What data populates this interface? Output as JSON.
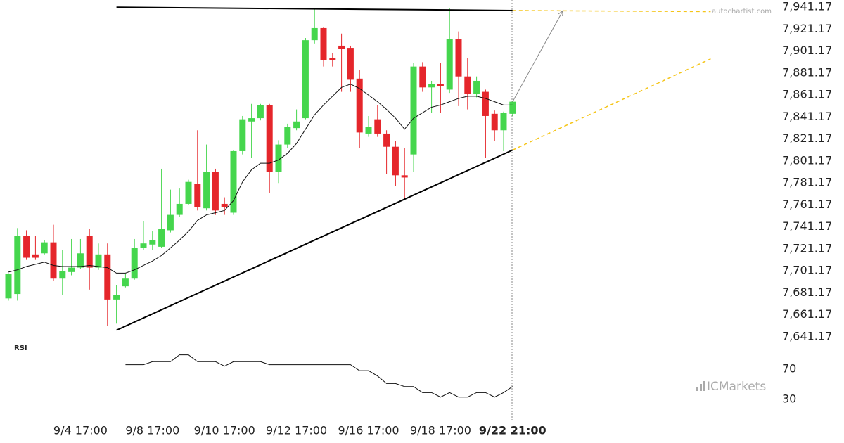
{
  "chart_data": {
    "type": "candlestick",
    "categories": [
      null,
      null,
      null,
      null,
      null,
      null,
      null,
      null,
      "9/4 17:00",
      null,
      null,
      null,
      null,
      null,
      null,
      null,
      "9/8 17:00",
      null,
      null,
      null,
      null,
      null,
      null,
      null,
      "9/10 17:00",
      null,
      null,
      null,
      null,
      null,
      null,
      null,
      "9/12 17:00",
      null,
      null,
      null,
      null,
      null,
      null,
      null,
      "9/16 17:00",
      null,
      null,
      null,
      null,
      null,
      null,
      null,
      "9/18 17:00",
      null,
      null,
      null,
      null,
      null,
      null,
      null,
      "9/22 21:00"
    ],
    "open": [
      7676,
      7680,
      7733,
      7716,
      7717,
      7727,
      7694,
      7700,
      7704,
      7733,
      7704,
      7716,
      7675,
      7687,
      7694,
      7722,
      7725,
      7723,
      7738,
      7752,
      7762,
      7780,
      7758,
      7791,
      7762,
      7754,
      7810,
      7837,
      7840,
      7852,
      7791,
      7816,
      7831,
      7840,
      7911,
      7922,
      7895,
      7906,
      7904,
      7876,
      7826,
      7839,
      7826,
      7814,
      7788,
      7807,
      7887,
      7868,
      7871,
      7866,
      7912,
      7878,
      7862,
      7864,
      7844,
      7829,
      7844
    ],
    "high": [
      7699,
      7740,
      7738,
      7733,
      7729,
      7743,
      7720,
      7730,
      7730,
      7739,
      7726,
      7726,
      7688,
      7698,
      7730,
      7746,
      7737,
      7794,
      7775,
      7776,
      7784,
      7829,
      7816,
      7794,
      7768,
      7811,
      7842,
      7853,
      7853,
      7853,
      7820,
      7835,
      7848,
      7913,
      7940,
      7923,
      7899,
      7917,
      7906,
      7884,
      7842,
      7852,
      7829,
      7819,
      7813,
      7890,
      7891,
      7874,
      7890,
      7940,
      7919,
      7895,
      7878,
      7866,
      7847,
      7846,
      7856
    ],
    "low": [
      7674,
      7674,
      7711,
      7711,
      7716,
      7692,
      7679,
      7697,
      7703,
      7684,
      7702,
      7651,
      7653,
      7686,
      7693,
      7720,
      7720,
      7722,
      7736,
      7750,
      7761,
      7756,
      7756,
      7752,
      7752,
      7752,
      7807,
      7804,
      7838,
      7772,
      7781,
      7813,
      7829,
      7839,
      7908,
      7887,
      7887,
      7864,
      7864,
      7813,
      7823,
      7823,
      7789,
      7778,
      7766,
      7791,
      7864,
      7845,
      7845,
      7863,
      7851,
      7848,
      7859,
      7804,
      7819,
      7810,
      7842
    ],
    "close": [
      7698,
      7733,
      7713,
      7713,
      7727,
      7694,
      7701,
      7704,
      7717,
      7704,
      7716,
      7675,
      7679,
      7694,
      7722,
      7726,
      7729,
      7739,
      7752,
      7762,
      7782,
      7759,
      7791,
      7756,
      7759,
      7810,
      7839,
      7840,
      7852,
      7791,
      7816,
      7832,
      7837,
      7911,
      7922,
      7893,
      7893,
      7903,
      7875,
      7827,
      7832,
      7826,
      7814,
      7788,
      7786,
      7887,
      7868,
      7871,
      7869,
      7912,
      7878,
      7862,
      7874,
      7842,
      7829,
      7845,
      7855
    ],
    "up_color": "#45d64d",
    "down_color": "#e5262b",
    "ma": {
      "color": "#111111",
      "values": [
        7700,
        7702,
        7705,
        7707,
        7709,
        7706,
        7705,
        7705,
        7705,
        7706,
        7705,
        7704,
        7699,
        7699,
        7702,
        7706,
        7710,
        7715,
        7722,
        7729,
        7737,
        7747,
        7752,
        7754,
        7756,
        7765,
        7782,
        7793,
        7799,
        7799,
        7802,
        7808,
        7817,
        7830,
        7843,
        7852,
        7860,
        7868,
        7871,
        7867,
        7861,
        7855,
        7848,
        7840,
        7830,
        7840,
        7845,
        7850,
        7852,
        7855,
        7858,
        7860,
        7860,
        7858,
        7855,
        7852,
        7852
      ]
    },
    "ylim": [
      7637.17,
      7947.57
    ],
    "yticks": [
      {
        "value": 7941.17,
        "label": "7,941.17"
      },
      {
        "value": 7921.17,
        "label": "7,921.17"
      },
      {
        "value": 7901.17,
        "label": "7,901.17"
      },
      {
        "value": 7881.17,
        "label": "7,881.17"
      },
      {
        "value": 7861.17,
        "label": "7,861.17"
      },
      {
        "value": 7841.17,
        "label": "7,841.17"
      },
      {
        "value": 7821.17,
        "label": "7,821.17"
      },
      {
        "value": 7801.17,
        "label": "7,801.17"
      },
      {
        "value": 7781.17,
        "label": "7,781.17"
      },
      {
        "value": 7761.17,
        "label": "7,761.17"
      },
      {
        "value": 7741.17,
        "label": "7,741.17"
      },
      {
        "value": 7721.17,
        "label": "7,721.17"
      },
      {
        "value": 7701.17,
        "label": "7,701.17"
      },
      {
        "value": 7681.17,
        "label": "7,681.17"
      },
      {
        "value": 7661.17,
        "label": "7,661.17"
      },
      {
        "value": 7641.17,
        "label": "7,641.17"
      }
    ],
    "trendlines": [
      {
        "x": [
          12,
          56
        ],
        "values": [
          7941,
          7938
        ],
        "color": "#000000",
        "dashed": false
      },
      {
        "x": [
          56,
          78
        ],
        "values": [
          7938,
          7937
        ],
        "color": "#f5c518",
        "dashed": true
      },
      {
        "x": [
          12,
          56
        ],
        "values": [
          7647,
          7811
        ],
        "color": "#000000",
        "dashed": false
      },
      {
        "x": [
          56,
          78
        ],
        "values": [
          7811,
          7894
        ],
        "color": "#f5c518",
        "dashed": true
      }
    ],
    "arrow": {
      "x": [
        56,
        61.6
      ],
      "values": [
        7855,
        7938
      ],
      "color": "#888888"
    },
    "rsi": {
      "title": "RSI",
      "color": "#111111",
      "ylim": [
        9.5,
        102.6
      ],
      "yticks": [
        70,
        30
      ],
      "values": [
        null,
        null,
        null,
        null,
        null,
        null,
        null,
        null,
        null,
        null,
        null,
        null,
        null,
        76,
        76,
        76,
        80,
        80,
        80,
        89,
        89,
        80,
        80,
        80,
        74,
        80,
        80,
        80,
        80,
        76,
        76,
        76,
        76,
        76,
        76,
        76,
        76,
        76,
        76,
        68,
        68,
        61,
        51,
        51,
        47,
        47,
        39,
        39,
        33,
        39,
        33,
        33,
        39,
        39,
        33,
        39,
        47
      ]
    },
    "watermarks": [
      "autochartist.com",
      "ICMarkets"
    ]
  }
}
